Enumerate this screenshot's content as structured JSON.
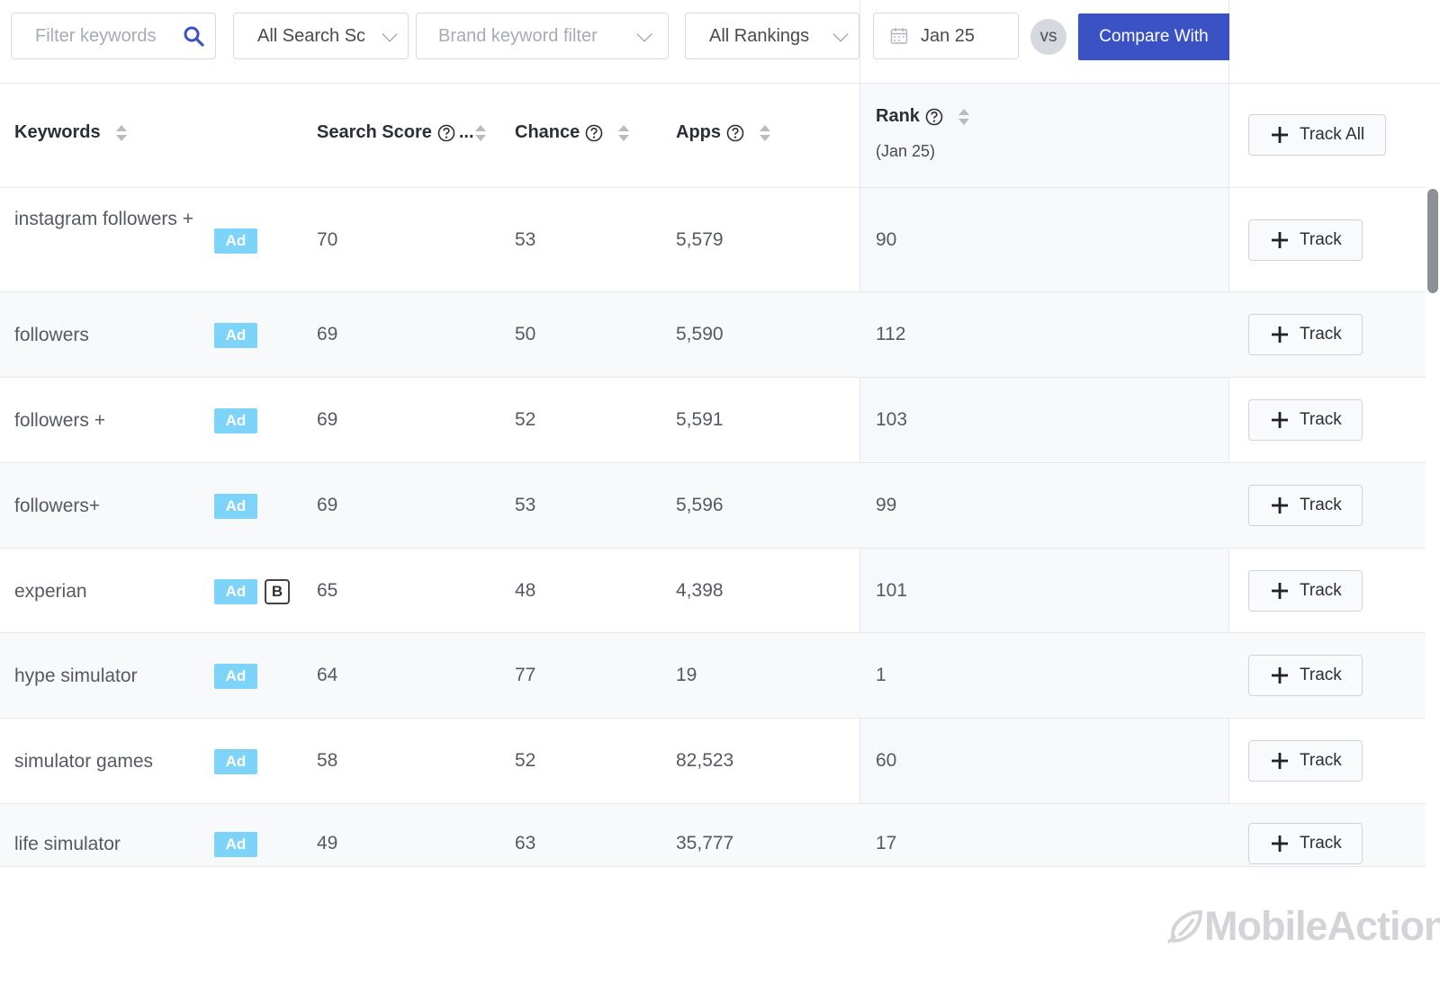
{
  "filters": {
    "keyword_placeholder": "Filter keywords",
    "search_scope": "All Search Sc",
    "brand_placeholder": "Brand keyword filter",
    "rankings": "All Rankings",
    "date": "Jan 25",
    "vs": "vs",
    "compare_label": "Compare With"
  },
  "columns": {
    "keywords": "Keywords",
    "search_score": "Search Score",
    "search_score_ellipsis": "...",
    "chance": "Chance",
    "apps": "Apps",
    "rank": "Rank",
    "rank_date": "(Jan 25)",
    "track_all": "Track All"
  },
  "rows": [
    {
      "keyword": "instagram followers +",
      "ad": "Ad",
      "brand": "",
      "search_score": "70",
      "chance": "53",
      "apps": "5,579",
      "rank": "90",
      "track": "Track"
    },
    {
      "keyword": "followers",
      "ad": "Ad",
      "brand": "",
      "search_score": "69",
      "chance": "50",
      "apps": "5,590",
      "rank": "112",
      "track": "Track"
    },
    {
      "keyword": "followers +",
      "ad": "Ad",
      "brand": "",
      "search_score": "69",
      "chance": "52",
      "apps": "5,591",
      "rank": "103",
      "track": "Track"
    },
    {
      "keyword": "followers+",
      "ad": "Ad",
      "brand": "",
      "search_score": "69",
      "chance": "53",
      "apps": "5,596",
      "rank": "99",
      "track": "Track"
    },
    {
      "keyword": "experian",
      "ad": "Ad",
      "brand": "B",
      "search_score": "65",
      "chance": "48",
      "apps": "4,398",
      "rank": "101",
      "track": "Track"
    },
    {
      "keyword": "hype simulator",
      "ad": "Ad",
      "brand": "",
      "search_score": "64",
      "chance": "77",
      "apps": "19",
      "rank": "1",
      "track": "Track"
    },
    {
      "keyword": "simulator games",
      "ad": "Ad",
      "brand": "",
      "search_score": "58",
      "chance": "52",
      "apps": "82,523",
      "rank": "60",
      "track": "Track"
    },
    {
      "keyword": "life simulator",
      "ad": "Ad",
      "brand": "",
      "search_score": "49",
      "chance": "63",
      "apps": "35,777",
      "rank": "17",
      "track": "Track"
    }
  ],
  "branding": {
    "logo_text": "MobileAction"
  },
  "colors": {
    "accent": "#3b52c4",
    "ad_badge": "#7ed3f8",
    "vs_bg": "#d5d8de"
  }
}
